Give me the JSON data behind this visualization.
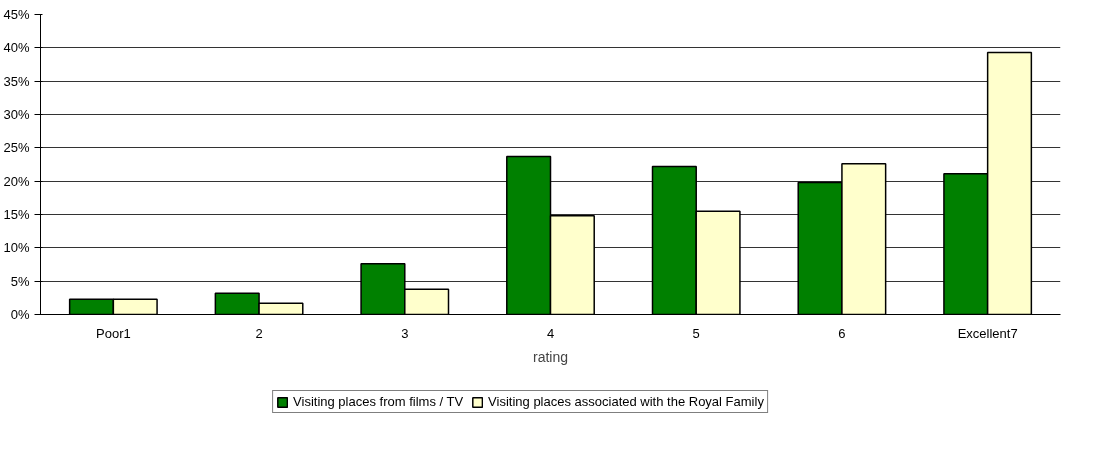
{
  "chart_data": {
    "type": "bar",
    "xlabel": "rating",
    "categories": [
      "Poor1",
      "2",
      "3",
      "4",
      "5",
      "6",
      "Excellent7"
    ],
    "series": [
      {
        "name": "Visiting places from films / TV",
        "color": "#008000",
        "values": [
          2.3,
          3.2,
          7.6,
          23.7,
          22.2,
          19.8,
          21.1
        ]
      },
      {
        "name": "Visiting places associated with the Royal Family",
        "color": "#ffffcc",
        "values": [
          2.3,
          1.7,
          3.8,
          14.8,
          15.5,
          22.6,
          39.3
        ]
      }
    ],
    "ylim": [
      0,
      45
    ],
    "yticks": [
      {
        "value": 0,
        "label": "0%"
      },
      {
        "value": 5,
        "label": "5%"
      },
      {
        "value": 10,
        "label": "10%"
      },
      {
        "value": 15,
        "label": "15%"
      },
      {
        "value": 20,
        "label": "20%"
      },
      {
        "value": 25,
        "label": "25%"
      },
      {
        "value": 30,
        "label": "30%"
      },
      {
        "value": 35,
        "label": "35%"
      },
      {
        "value": 40,
        "label": "40%"
      },
      {
        "value": 45,
        "label": "45%"
      }
    ],
    "grid": "y",
    "legend": "bottom"
  }
}
